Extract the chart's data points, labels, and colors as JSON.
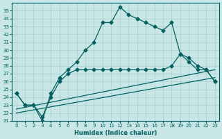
{
  "xlabel": "Humidex (Indice chaleur)",
  "background_color": "#c8e6e6",
  "grid_color": "#a8d0d0",
  "line_color": "#006060",
  "xlim": [
    -0.5,
    23.5
  ],
  "ylim": [
    21,
    36
  ],
  "yticks": [
    21,
    22,
    23,
    24,
    25,
    26,
    27,
    28,
    29,
    30,
    31,
    32,
    33,
    34,
    35
  ],
  "xticks": [
    0,
    1,
    2,
    3,
    4,
    5,
    6,
    7,
    8,
    9,
    10,
    11,
    12,
    13,
    14,
    15,
    16,
    17,
    18,
    19,
    20,
    21,
    22,
    23
  ],
  "curve1_x": [
    0,
    1,
    2,
    3,
    4,
    5,
    6,
    7,
    8,
    9,
    10,
    11,
    12,
    13,
    14,
    15,
    16,
    17,
    18,
    19,
    20,
    21,
    22,
    23
  ],
  "curve1_y": [
    24.5,
    23.0,
    23.0,
    21.0,
    24.5,
    26.5,
    27.5,
    28.5,
    30.0,
    31.0,
    33.5,
    33.5,
    35.5,
    34.5,
    34.0,
    33.5,
    33.0,
    32.5,
    33.5,
    29.5,
    28.5,
    27.5,
    27.5,
    26.0
  ],
  "curve2_x": [
    0,
    1,
    2,
    3,
    4,
    5,
    6,
    7,
    8,
    9,
    10,
    11,
    12,
    13,
    14,
    15,
    16,
    17,
    18,
    19,
    20,
    21,
    22,
    23
  ],
  "curve2_y": [
    24.5,
    23.0,
    23.0,
    21.5,
    24.0,
    26.0,
    27.0,
    27.5,
    27.5,
    27.5,
    27.5,
    27.5,
    27.5,
    27.5,
    27.5,
    27.5,
    27.5,
    27.5,
    28.0,
    29.5,
    29.0,
    28.0,
    27.5,
    26.0
  ],
  "line3_x": [
    0,
    23
  ],
  "line3_y": [
    22.5,
    27.5
  ],
  "line4_x": [
    0,
    23
  ],
  "line4_y": [
    22.0,
    26.5
  ],
  "tick_fontsize": 5,
  "xlabel_fontsize": 6
}
